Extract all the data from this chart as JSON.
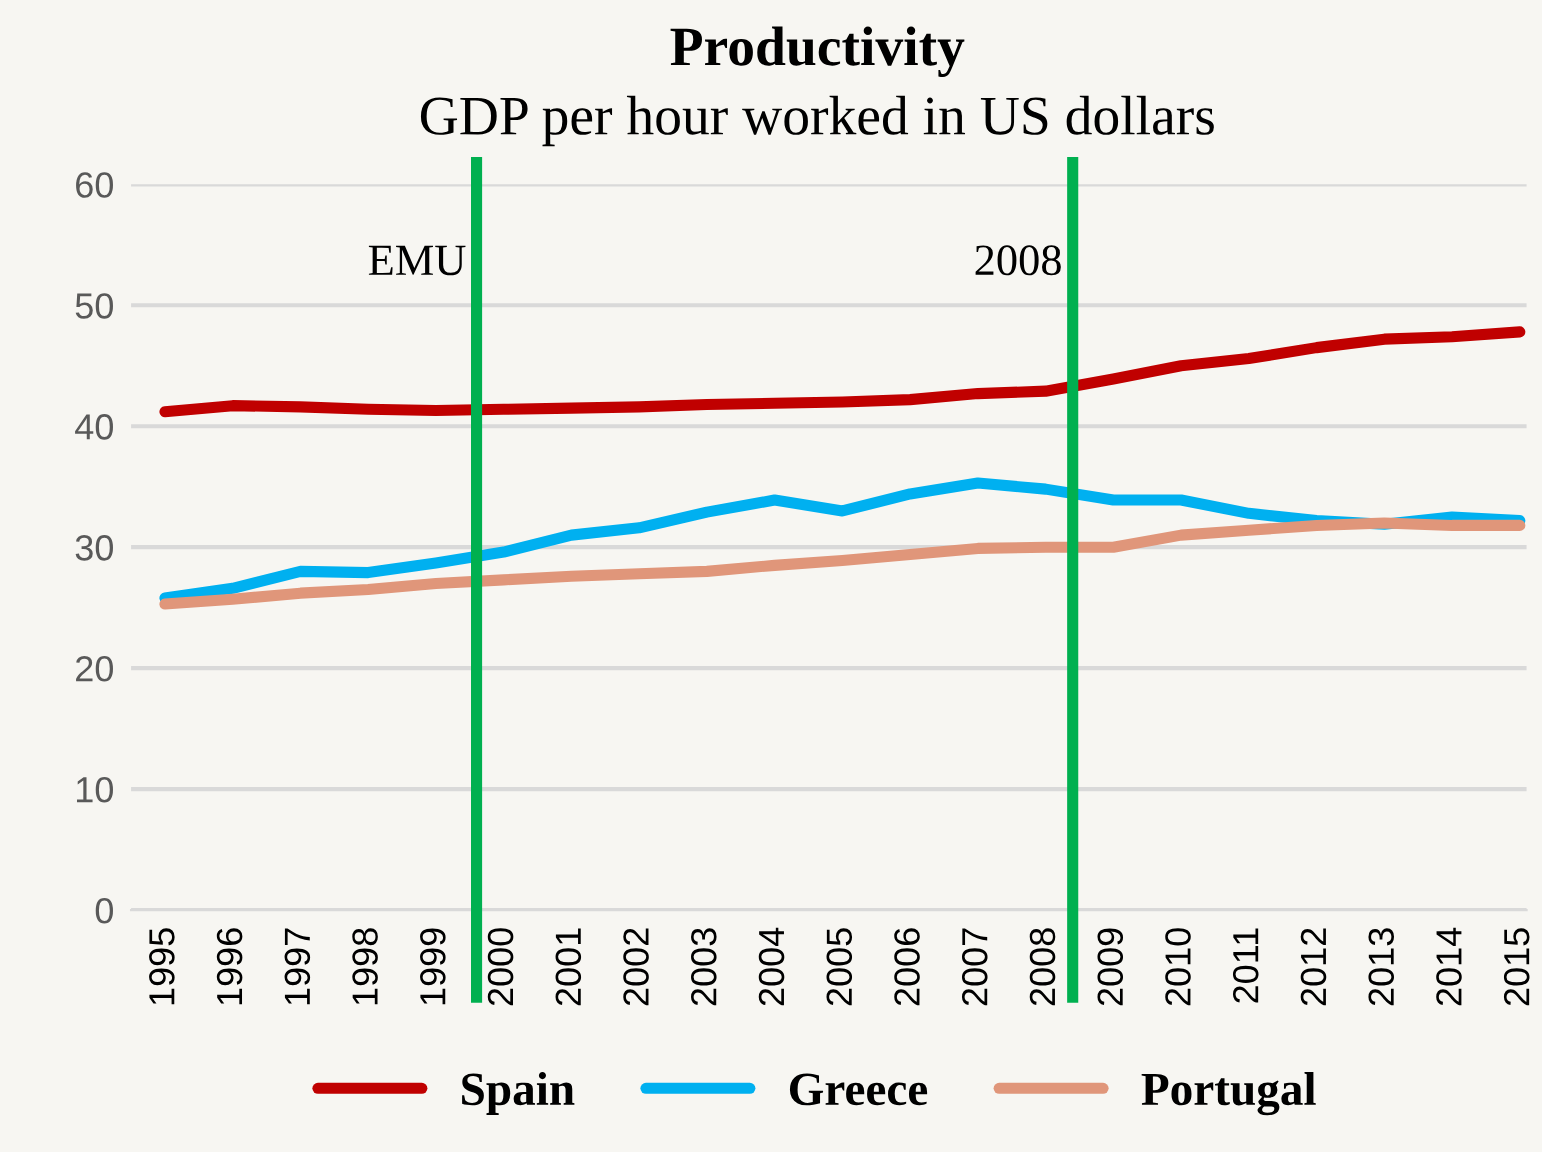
{
  "chart_data": {
    "type": "line",
    "title": "Productivity",
    "subtitle": "GDP per hour worked in US dollars",
    "x": [
      1995,
      1996,
      1997,
      1998,
      1999,
      2000,
      2001,
      2002,
      2003,
      2004,
      2005,
      2006,
      2007,
      2008,
      2009,
      2010,
      2011,
      2012,
      2013,
      2014,
      2015
    ],
    "series": [
      {
        "name": "Spain",
        "color": "#c00000",
        "values": [
          41.2,
          41.7,
          41.6,
          41.4,
          41.3,
          41.4,
          41.5,
          41.6,
          41.8,
          41.9,
          42.0,
          42.2,
          42.7,
          42.9,
          43.9,
          45.0,
          45.6,
          46.5,
          47.2,
          47.4,
          47.8
        ]
      },
      {
        "name": "Greece",
        "color": "#00b0f0",
        "values": [
          25.8,
          26.6,
          28.0,
          27.9,
          28.7,
          29.6,
          31.0,
          31.6,
          32.9,
          33.9,
          33.0,
          34.4,
          35.3,
          34.8,
          33.9,
          33.9,
          32.8,
          32.2,
          31.9,
          32.5,
          32.2
        ]
      },
      {
        "name": "Portugal",
        "color": "#e0967a",
        "values": [
          25.3,
          25.7,
          26.2,
          26.5,
          27.0,
          27.3,
          27.6,
          27.8,
          28.0,
          28.5,
          28.9,
          29.4,
          29.9,
          30.0,
          30.0,
          31.0,
          31.4,
          31.8,
          32.0,
          31.8,
          31.8
        ]
      }
    ],
    "xlim": [
      1994.5,
      2015.1
    ],
    "xticks": [
      1995,
      1996,
      1997,
      1998,
      1999,
      2000,
      2001,
      2002,
      2003,
      2004,
      2005,
      2006,
      2007,
      2008,
      2009,
      2010,
      2011,
      2012,
      2013,
      2014,
      2015
    ],
    "ylim": [
      0,
      60
    ],
    "yticks": [
      0,
      10,
      20,
      30,
      40,
      50,
      60
    ],
    "ref_lines": [
      {
        "axis": "x",
        "value": 1999.6,
        "label": "EMU",
        "color": "#00b050"
      },
      {
        "axis": "x",
        "value": 2008.4,
        "label": "2008",
        "color": "#00b050"
      }
    ],
    "grid": "y",
    "legend": "bottom",
    "marker": "none",
    "line_style": "solid"
  }
}
